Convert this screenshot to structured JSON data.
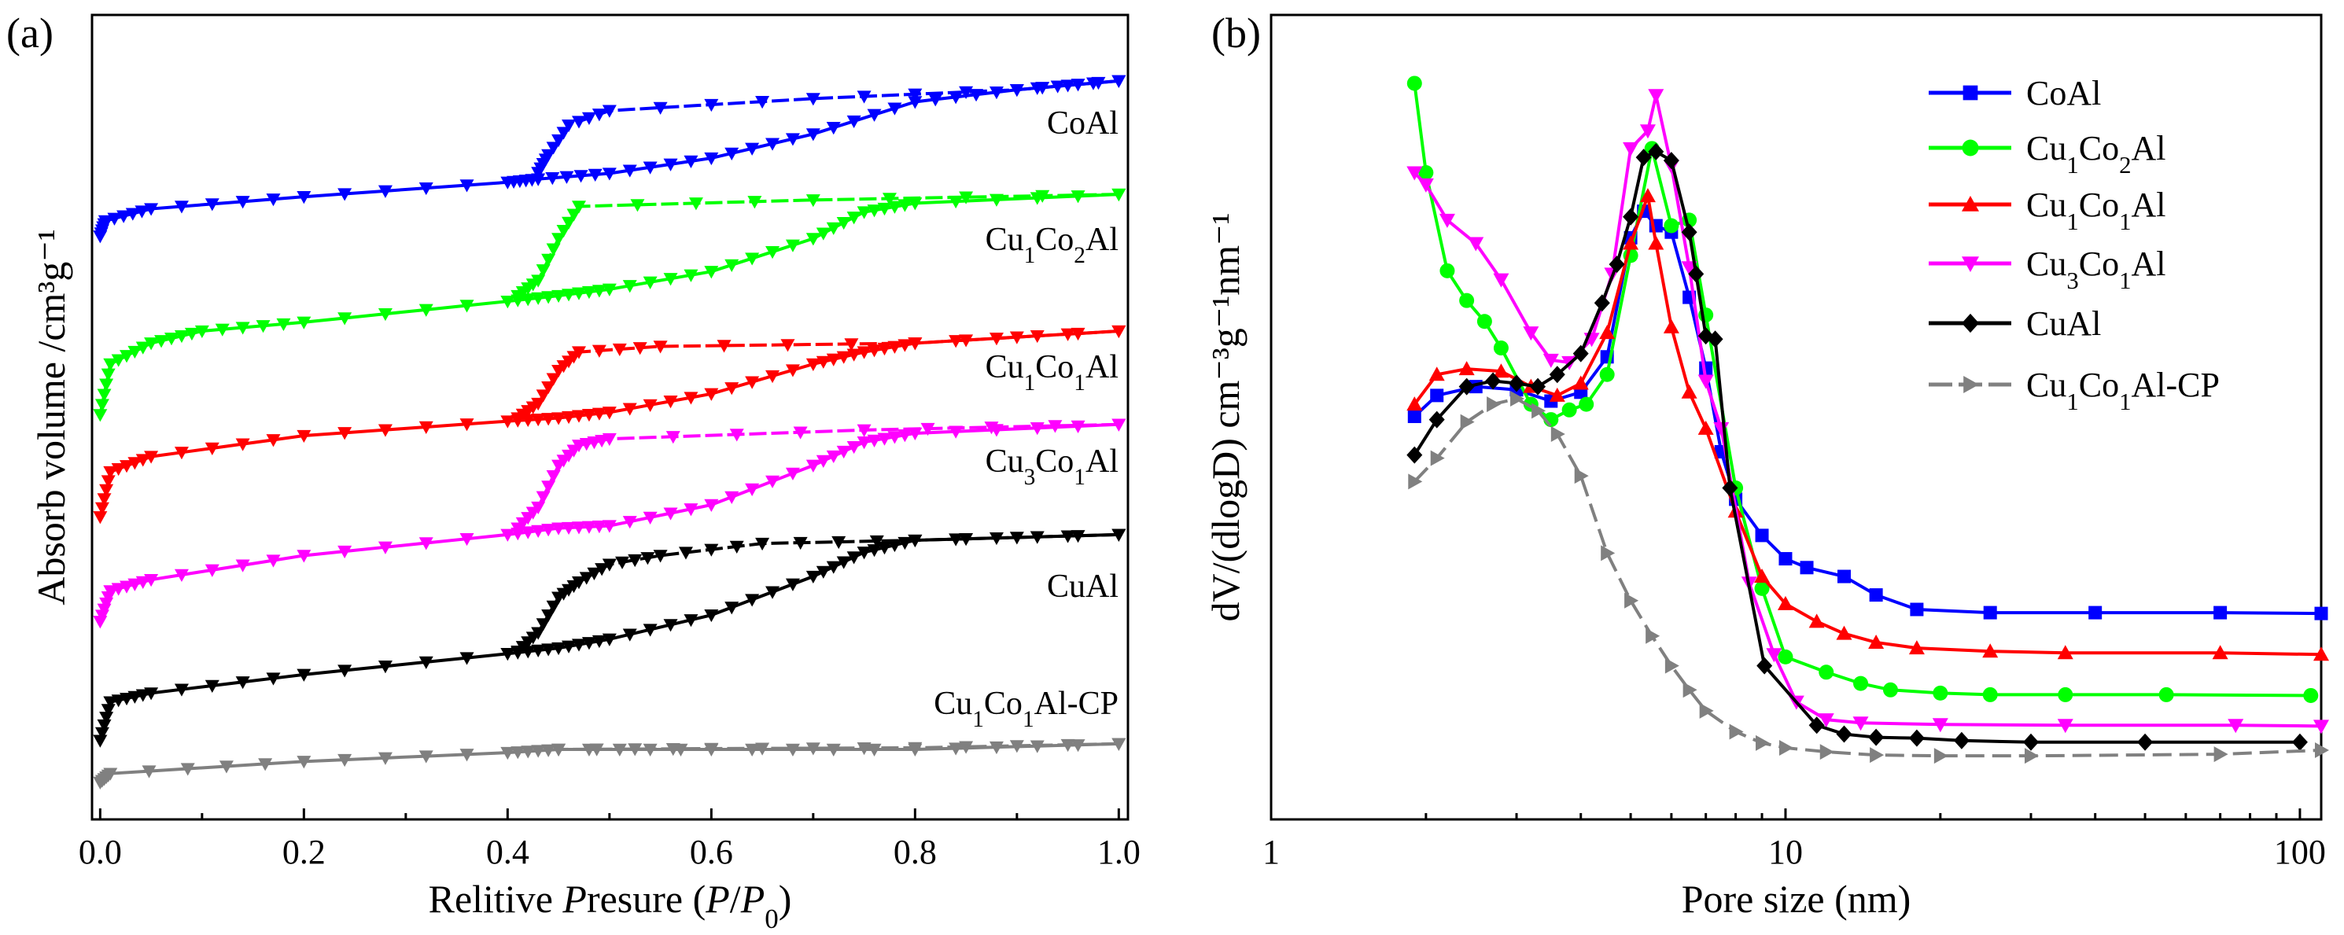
{
  "chart_data": [
    {
      "panel_label": "(a)",
      "type": "line",
      "title": "",
      "xlabel": "Relitive Presure (P/P0)",
      "ylabel": "Absorb volume /cm³g⁻¹",
      "xlim": [
        -0.008,
        1.009
      ],
      "ylim": [
        0,
        100
      ],
      "y_units": "arbitrary (offset curves, no y tick labels)",
      "xticks": [
        0.0,
        0.2,
        0.4,
        0.6,
        0.8,
        1.0
      ],
      "xtick_labels": [
        "0.0",
        "0.2",
        "0.4",
        "0.6",
        "0.8",
        "1.0"
      ],
      "marker": "triangle-down",
      "series": [
        {
          "name": "CoAl",
          "color": "#0000ff",
          "adsorption": {
            "x": [
              0,
              0.005,
              0.05,
              0.2,
              0.4,
              0.43,
              0.5,
              0.6,
              0.7,
              0.8,
              0.9,
              1.0
            ],
            "y": [
              72.5,
              74.4,
              75.9,
              77.4,
              79.2,
              79.6,
              80.3,
              82.2,
              85.2,
              89.2,
              90.7,
              91.8
            ]
          },
          "desorption": {
            "x": [
              1.0,
              0.9,
              0.7,
              0.5,
              0.46,
              0.44,
              0.43
            ],
            "y": [
              91.8,
              90.7,
              89.6,
              88.1,
              86.3,
              82.6,
              80.4
            ]
          }
        },
        {
          "name": "Cu1Co2Al",
          "color": "#00ff00",
          "adsorption": {
            "x": [
              0,
              0.01,
              0.05,
              0.1,
              0.2,
              0.4,
              0.45,
              0.5,
              0.6,
              0.7,
              0.75,
              0.8,
              1.0
            ],
            "y": [
              50.3,
              56.6,
              59.2,
              60.7,
              61.8,
              64.4,
              65.1,
              65.9,
              68.1,
              72.2,
              75.5,
              76.6,
              77.7
            ]
          },
          "desorption": {
            "x": [
              1.0,
              0.7,
              0.47,
              0.45,
              0.43,
              0.41
            ],
            "y": [
              77.7,
              77.0,
              76.2,
              72.2,
              67.0,
              65.1
            ]
          }
        },
        {
          "name": "Cu1Co1Al",
          "color": "#ff0000",
          "adsorption": {
            "x": [
              0,
              0.01,
              0.05,
              0.2,
              0.4,
              0.45,
              0.5,
              0.6,
              0.7,
              0.75,
              0.8,
              1.0
            ],
            "y": [
              37.6,
              43.2,
              45.1,
              47.7,
              49.5,
              49.9,
              50.6,
              52.9,
              56.6,
              58.1,
              59.2,
              60.7
            ]
          },
          "desorption": {
            "x": [
              1.0,
              0.8,
              0.55,
              0.47,
              0.45,
              0.43,
              0.41
            ],
            "y": [
              60.7,
              59.2,
              58.8,
              58.1,
              55.8,
              51.7,
              49.9
            ]
          }
        },
        {
          "name": "Cu3Co1Al",
          "color": "#ff00ff",
          "adsorption": {
            "x": [
              0,
              0.01,
              0.05,
              0.2,
              0.4,
              0.45,
              0.5,
              0.6,
              0.7,
              0.75,
              0.8,
              1.0
            ],
            "y": [
              24.6,
              28.4,
              29.8,
              32.8,
              35.4,
              36.2,
              36.5,
              39.1,
              44.0,
              46.9,
              48.0,
              49.1
            ]
          },
          "desorption": {
            "x": [
              1.0,
              0.75,
              0.5,
              0.47,
              0.45,
              0.43,
              0.41
            ],
            "y": [
              49.1,
              48.4,
              47.3,
              46.5,
              44.0,
              38.8,
              36.2
            ]
          }
        },
        {
          "name": "CuAl",
          "color": "#000000",
          "adsorption": {
            "x": [
              0,
              0.01,
              0.05,
              0.2,
              0.4,
              0.45,
              0.5,
              0.6,
              0.7,
              0.75,
              0.8,
              1.0
            ],
            "y": [
              9.8,
              14.6,
              15.7,
              18.0,
              20.6,
              21.3,
              22.4,
              25.4,
              30.2,
              33.2,
              34.7,
              35.4
            ]
          },
          "desorption": {
            "x": [
              1.0,
              0.8,
              0.65,
              0.55,
              0.5,
              0.47,
              0.45,
              0.43,
              0.41
            ],
            "y": [
              35.4,
              34.7,
              34.3,
              32.8,
              31.7,
              29.5,
              27.6,
              23.2,
              20.9
            ]
          }
        },
        {
          "name": "Cu1Co1Al-CP",
          "color": "#808080",
          "adsorption": {
            "x": [
              0,
              0.01,
              0.2,
              0.4,
              0.45,
              0.6,
              0.8,
              1.0
            ],
            "y": [
              4.6,
              5.7,
              7.2,
              8.3,
              8.7,
              8.7,
              8.7,
              9.4
            ]
          },
          "desorption": {
            "x": [
              1.0,
              0.8,
              0.6,
              0.45
            ],
            "y": [
              9.4,
              8.9,
              8.8,
              8.7
            ]
          }
        }
      ]
    },
    {
      "panel_label": "(b)",
      "type": "line",
      "title": "",
      "xlabel": "Pore size (nm)",
      "ylabel": "dV/(dlogD) cm⁻³g⁻¹nm⁻¹",
      "xscale": "log",
      "xlim": [
        1,
        110
      ],
      "ylim": [
        0,
        100
      ],
      "y_units": "arbitrary (no y tick labels)",
      "xticks": [
        1,
        10,
        100
      ],
      "xtick_labels": [
        "1",
        "10",
        "100"
      ],
      "legend": "top-right",
      "series": [
        {
          "name": "CoAl",
          "color": "#0000ff",
          "marker": "square",
          "x": [
            1.9,
            2.1,
            2.5,
            3,
            3.5,
            4,
            4.5,
            5,
            5.3,
            5.6,
            6,
            6.5,
            7,
            7.5,
            8,
            9,
            10,
            11,
            13,
            15,
            18,
            25,
            40,
            70,
            110
          ],
          "y": [
            50.1,
            52.7,
            53.8,
            53.4,
            52.0,
            53.1,
            57.5,
            72.3,
            75.6,
            73.8,
            73.0,
            64.9,
            56.1,
            45.7,
            39.8,
            35.3,
            32.4,
            31.3,
            30.2,
            27.9,
            26.1,
            25.7,
            25.7,
            25.7,
            25.6
          ]
        },
        {
          "name": "Cu1Co2Al",
          "color": "#00ff00",
          "marker": "circle",
          "x": [
            1.9,
            2.0,
            2.2,
            2.4,
            2.6,
            2.8,
            3.2,
            3.5,
            3.8,
            4.1,
            4.5,
            5.0,
            5.5,
            6.0,
            6.5,
            7,
            8,
            9,
            10,
            12,
            14,
            16,
            20,
            25,
            35,
            55,
            105
          ],
          "y": [
            91.5,
            80.4,
            68.2,
            64.5,
            61.9,
            58.6,
            51.6,
            49.7,
            50.9,
            51.6,
            55.3,
            70.1,
            83.4,
            73.8,
            74.5,
            62.7,
            41.2,
            28.7,
            20.2,
            18.3,
            16.9,
            16.1,
            15.7,
            15.5,
            15.5,
            15.5,
            15.4
          ]
        },
        {
          "name": "Cu1Co1Al",
          "color": "#ff0000",
          "marker": "triangle-up",
          "x": [
            1.9,
            2.1,
            2.4,
            2.8,
            3.2,
            3.6,
            4,
            4.5,
            5.0,
            5.4,
            5.6,
            6,
            6.5,
            7,
            8,
            9,
            10,
            11.5,
            13,
            15,
            18,
            25,
            35,
            70,
            110
          ],
          "y": [
            51.6,
            55.3,
            56.0,
            55.7,
            53.8,
            52.7,
            54.2,
            60.5,
            71.6,
            77.5,
            71.6,
            61.2,
            53.1,
            48.6,
            38.3,
            30.2,
            26.8,
            24.6,
            23.1,
            22.0,
            21.3,
            20.9,
            20.7,
            20.7,
            20.5
          ]
        },
        {
          "name": "Cu3Co1Al",
          "color": "#ff00ff",
          "marker": "triangle-down",
          "x": [
            1.9,
            2.0,
            2.2,
            2.5,
            2.8,
            3.2,
            3.5,
            3.8,
            4.2,
            4.6,
            5.0,
            5.4,
            5.6,
            6,
            6.5,
            7,
            7.5,
            8.5,
            9.5,
            10.5,
            12,
            14,
            20,
            35,
            75,
            110
          ],
          "y": [
            80.4,
            78.9,
            74.5,
            71.6,
            67.1,
            60.5,
            57.1,
            56.8,
            59.7,
            67.8,
            83.4,
            85.6,
            90.0,
            81.2,
            68.6,
            54.5,
            48.6,
            29.4,
            20.5,
            14.6,
            12.4,
            12.0,
            11.8,
            11.7,
            11.7,
            11.6
          ]
        },
        {
          "name": "CuAl",
          "color": "#000000",
          "marker": "diamond",
          "x": [
            1.9,
            2.1,
            2.4,
            2.7,
            3.0,
            3.3,
            3.6,
            4,
            4.4,
            4.7,
            5.0,
            5.3,
            5.6,
            6.0,
            6.5,
            6.7,
            7,
            7.3,
            7.8,
            9.1,
            11.5,
            13,
            15,
            18,
            22,
            30,
            50,
            100
          ],
          "y": [
            45.3,
            49.7,
            53.8,
            54.5,
            54.2,
            53.8,
            55.3,
            57.9,
            64.2,
            69.0,
            74.9,
            82.3,
            83.0,
            81.9,
            73.0,
            67.8,
            60.1,
            59.7,
            41.2,
            19.1,
            11.7,
            10.6,
            10.2,
            10.1,
            9.8,
            9.6,
            9.6,
            9.6
          ]
        },
        {
          "name": "Cu1Co1Al-CP",
          "color": "#808080",
          "marker": "triangle-right",
          "dashed": true,
          "x": [
            1.9,
            2.1,
            2.4,
            2.7,
            3.0,
            3.3,
            3.6,
            4,
            4.5,
            5,
            5.5,
            6,
            6.5,
            7,
            8,
            9,
            10,
            12,
            15,
            20,
            30,
            70,
            110
          ],
          "y": [
            42.0,
            44.9,
            49.4,
            51.6,
            52.3,
            50.8,
            47.9,
            42.7,
            33.1,
            27.2,
            22.8,
            19.1,
            16.1,
            13.5,
            10.9,
            9.5,
            8.9,
            8.4,
            8.0,
            7.9,
            7.9,
            8.1,
            8.6
          ]
        }
      ]
    }
  ]
}
